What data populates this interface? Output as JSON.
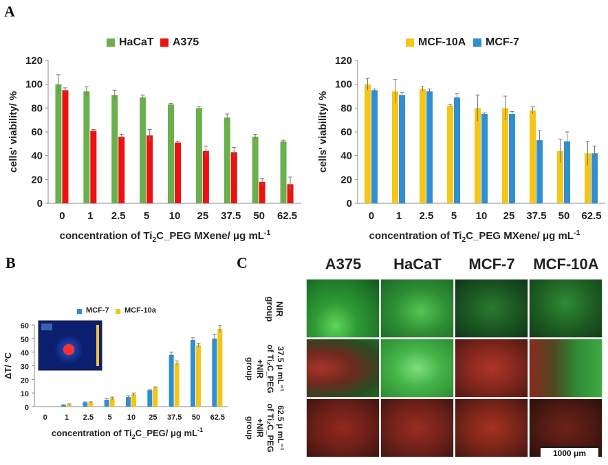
{
  "panels": {
    "a": "A",
    "b": "B",
    "c": "C"
  },
  "chart_data": [
    {
      "id": "A-left",
      "type": "bar",
      "categories": [
        "0",
        "1",
        "2.5",
        "5",
        "10",
        "25",
        "37.5",
        "50",
        "62.5"
      ],
      "series": [
        {
          "name": "HaCaT",
          "color": "#6ab04c",
          "values": [
            100,
            94,
            91,
            89,
            83,
            80,
            72,
            56,
            52
          ],
          "errors": [
            8,
            4,
            4,
            2,
            1,
            1,
            3,
            2,
            1
          ]
        },
        {
          "name": "A375",
          "color": "#ee1111",
          "values": [
            95,
            61,
            56,
            57,
            51,
            44,
            43,
            18,
            16
          ],
          "errors": [
            2,
            1,
            2,
            5,
            1,
            4,
            4,
            3,
            6
          ]
        }
      ],
      "ylabel": "cells' viability/ %",
      "xlabel_parts": [
        "concentration of Ti",
        "2",
        "C_PEG MXene/ μg mL",
        "-1"
      ],
      "yticks": [
        0,
        20,
        40,
        60,
        80,
        100,
        120
      ],
      "ylim": [
        0,
        120
      ]
    },
    {
      "id": "A-right",
      "type": "bar",
      "categories": [
        "0",
        "1",
        "2.5",
        "5",
        "10",
        "25",
        "37.5",
        "50",
        "62.5"
      ],
      "series": [
        {
          "name": "MCF-10A",
          "color": "#f5c518",
          "values": [
            100,
            94,
            96,
            82,
            80,
            80,
            78,
            44,
            42
          ],
          "errors": [
            5,
            10,
            2,
            1,
            11,
            10,
            3,
            10,
            10
          ]
        },
        {
          "name": "MCF-7",
          "color": "#2f8fd0",
          "values": [
            95,
            91,
            94,
            89,
            75,
            75,
            53,
            52,
            42
          ],
          "errors": [
            1,
            2,
            2,
            3,
            1,
            2,
            8,
            8,
            6
          ]
        }
      ],
      "ylabel": "cells' viability/ %",
      "xlabel_parts": [
        "concentration of Ti",
        "2",
        "C_PEG MXene/ μg mL",
        "-1"
      ],
      "yticks": [
        0,
        20,
        40,
        60,
        80,
        100,
        120
      ],
      "ylim": [
        0,
        120
      ]
    },
    {
      "id": "B",
      "type": "bar",
      "categories": [
        "0",
        "1",
        "2.5",
        "5",
        "10",
        "25",
        "37.5",
        "50",
        "62.5"
      ],
      "series": [
        {
          "name": "MCF-7",
          "color": "#2f8fd0",
          "values": [
            0,
            1,
            3,
            5,
            7,
            12,
            38,
            49,
            50
          ],
          "errors": [
            0,
            0.5,
            0.5,
            1,
            1,
            0.5,
            2,
            1.5,
            3
          ]
        },
        {
          "name": "MCF-10a",
          "color": "#f5c518",
          "values": [
            0,
            1.5,
            3,
            6,
            9,
            14,
            32,
            45,
            57
          ],
          "errors": [
            0,
            0.5,
            0.5,
            1,
            1,
            0.5,
            1.5,
            1.5,
            2.5
          ]
        }
      ],
      "ylabel": "ΔT/ °C",
      "xlabel_parts": [
        "concentration of Ti",
        "2",
        "C_PEG/ μg mL",
        "-1"
      ],
      "yticks": [
        0,
        10,
        20,
        30,
        40,
        50,
        60
      ],
      "ylim": [
        0,
        60
      ]
    }
  ],
  "micrographs": {
    "columns": [
      "A375",
      "HaCaT",
      "MCF-7",
      "MCF-10A"
    ],
    "rows": [
      {
        "lines": [
          "NIR",
          "group"
        ],
        "cells": [
          "green",
          "green",
          "green-dark",
          "green-dark"
        ]
      },
      {
        "lines": [
          "37.5 μ mL⁻¹",
          "of Ti₂C_PEG",
          "+NIR",
          "group"
        ],
        "cells": [
          "red-green",
          "green",
          "red",
          "green-red"
        ]
      },
      {
        "lines": [
          "62.5 μ mL⁻¹",
          "of Ti₂C_PEG",
          "+NIR",
          "group"
        ],
        "cells": [
          "red",
          "red",
          "red",
          "red-dark"
        ]
      }
    ],
    "scale_bar": "1000 μm"
  },
  "thermal_inset": {
    "label": "thermal camera image",
    "icon": "thermal-image-icon"
  }
}
